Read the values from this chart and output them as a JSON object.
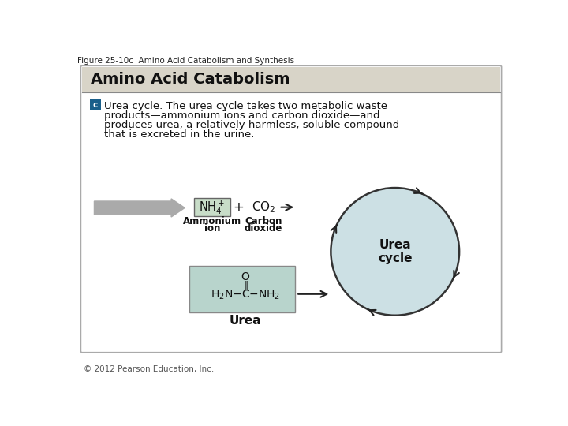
{
  "figure_title": "Figure 25-10c  Amino Acid Catabolism and Synthesis",
  "box_title": "Amino Acid Catabolism",
  "box_bg": "#d8d4c8",
  "main_bg": "#ffffff",
  "label_c_bg": "#1a5f8a",
  "label_c_text": "c",
  "desc_line1": "Urea cycle. The urea cycle takes two metabolic waste",
  "desc_line2": "products—ammonium ions and carbon dioxide—and",
  "desc_line3": "produces urea, a relatively harmless, soluble compound",
  "desc_line4": "that is excreted in the urine.",
  "nh4_box_bg": "#c8ddc8",
  "urea_box_bg": "#b8d4cc",
  "urea_circle_bg": "#cce0e4",
  "copyright": "© 2012 Pearson Education, Inc.",
  "arrow_color": "#222222",
  "big_arrow_color": "#aaaaaa",
  "outer_box_edge": "#aaaaaa",
  "header_sep_color": "#888888"
}
